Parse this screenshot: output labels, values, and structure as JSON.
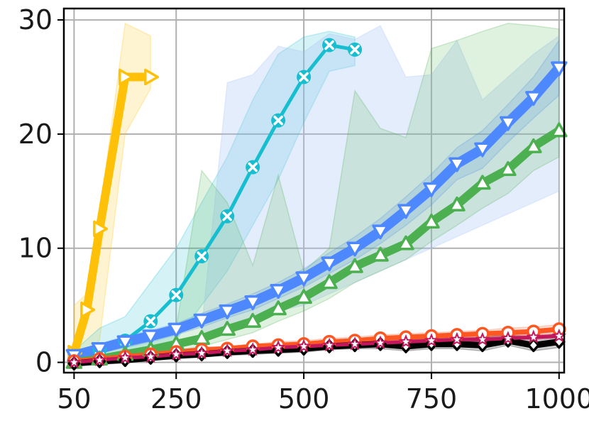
{
  "chart_data": {
    "type": "line",
    "title": "",
    "xlabel": "",
    "ylabel": "",
    "xlim": [
      30,
      1010
    ],
    "ylim": [
      -0.9,
      31
    ],
    "grid": true,
    "legend": "none",
    "x_ticks": [
      {
        "value": 50,
        "label": "50"
      },
      {
        "value": 250,
        "label": "250"
      },
      {
        "value": 500,
        "label": "500"
      },
      {
        "value": 750,
        "label": "750"
      },
      {
        "value": 1000,
        "label": "1000"
      }
    ],
    "y_ticks": [
      {
        "value": 0,
        "label": "0"
      },
      {
        "value": 10,
        "label": "10"
      },
      {
        "value": 20,
        "label": "20"
      },
      {
        "value": 30,
        "label": "30"
      }
    ],
    "series": [
      {
        "color": "#ffc107",
        "marker": "triangle-right",
        "line_width": 12,
        "x": [
          50,
          75,
          100,
          150,
          200
        ],
        "y": [
          0.8,
          4.6,
          11.7,
          25.0,
          25.0
        ],
        "band_upper": [
          5,
          6,
          13,
          29.7,
          28.6
        ],
        "band_lower": [
          0.2,
          0.5,
          2,
          20,
          24
        ],
        "band_x": [
          50,
          75,
          100,
          150,
          200
        ]
      },
      {
        "color": "#17becf",
        "marker": "x-circle",
        "line_width": 5,
        "x": [
          50,
          100,
          150,
          200,
          250,
          300,
          350,
          400,
          450,
          500,
          550,
          600
        ],
        "y": [
          0.1,
          1.1,
          1.9,
          3.6,
          5.9,
          9.3,
          12.8,
          17.1,
          21.2,
          25.0,
          27.8,
          27.4
        ],
        "band_upper": [
          1,
          3,
          4,
          7,
          10,
          14,
          18,
          23,
          27,
          28.5,
          29,
          28.5
        ],
        "band_lower": [
          0,
          0.3,
          0.5,
          1,
          2,
          5,
          8,
          12,
          16,
          21,
          25.5,
          26
        ],
        "band_x": [
          50,
          100,
          150,
          200,
          250,
          300,
          350,
          400,
          450,
          500,
          550,
          600
        ]
      },
      {
        "color": "#a4c2f4",
        "marker": "none",
        "line_width": 0,
        "band_only": true,
        "band_x": [
          300,
          350,
          400,
          450,
          500,
          550,
          600,
          650,
          700,
          750,
          800,
          850,
          900,
          950,
          1000
        ],
        "band_upper": [
          3,
          24.5,
          25.2,
          27.7,
          27.2,
          28.8,
          28.3,
          29.5,
          25,
          25.2,
          28.2,
          23,
          25,
          27,
          28.6
        ],
        "band_lower": [
          2,
          3,
          4,
          4.5,
          5,
          6,
          7,
          8,
          9,
          10,
          11,
          12,
          13,
          14,
          15
        ]
      },
      {
        "color": "#4d88ff",
        "marker": "triangle-down",
        "line_width": 14,
        "x": [
          50,
          100,
          150,
          200,
          250,
          300,
          350,
          400,
          450,
          500,
          550,
          600,
          650,
          700,
          750,
          800,
          850,
          900,
          950,
          1000
        ],
        "y": [
          0.6,
          1.2,
          1.8,
          2.3,
          2.9,
          3.7,
          4.5,
          5.3,
          6.3,
          7.4,
          8.7,
          10.0,
          11.5,
          13.3,
          15.2,
          17.4,
          18.7,
          21.0,
          23.2,
          25.8
        ],
        "band_upper": [
          1,
          1.6,
          2.3,
          2.8,
          3.4,
          4.3,
          5.1,
          6,
          7,
          8.2,
          9.6,
          11,
          12.6,
          14.5,
          16.5,
          18.8,
          20.3,
          22.6,
          25,
          28.2
        ],
        "band_lower": [
          0.3,
          0.8,
          1.3,
          1.8,
          2.4,
          3.1,
          3.9,
          4.6,
          5.6,
          6.6,
          7.8,
          9,
          10.4,
          12,
          13.8,
          16,
          17,
          19.3,
          21.4,
          23.4
        ],
        "band_x": [
          50,
          100,
          150,
          200,
          250,
          300,
          350,
          400,
          450,
          500,
          550,
          600,
          650,
          700,
          750,
          800,
          850,
          900,
          950,
          1000
        ]
      },
      {
        "color": "#4caf50",
        "marker": "triangle-up",
        "line_width": 12,
        "x": [
          50,
          100,
          150,
          200,
          250,
          300,
          350,
          400,
          450,
          500,
          550,
          600,
          650,
          700,
          750,
          800,
          850,
          900,
          950,
          1000
        ],
        "y": [
          0.0,
          0.3,
          0.7,
          1.1,
          1.6,
          2.1,
          2.9,
          3.6,
          4.7,
          5.7,
          7.0,
          8.4,
          9.4,
          10.4,
          12.3,
          13.8,
          15.7,
          16.9,
          18.9,
          20.3
        ],
        "band_upper": [
          0.5,
          1,
          1.5,
          2,
          3,
          16.8,
          14,
          8.5,
          16.4,
          8,
          10,
          23.8,
          20.5,
          19.7,
          27.5,
          28.2,
          29,
          29.7,
          29.5,
          29.2
        ],
        "band_lower": [
          -0.3,
          0,
          0.2,
          0.6,
          1,
          1.4,
          2,
          2.6,
          3.6,
          4.5,
          5.6,
          7,
          8,
          9,
          10.6,
          12,
          13.5,
          14.8,
          16.8,
          18
        ],
        "band_x": [
          50,
          100,
          150,
          200,
          250,
          300,
          350,
          400,
          450,
          500,
          550,
          600,
          650,
          700,
          750,
          800,
          850,
          900,
          950,
          1000
        ]
      },
      {
        "color": "#ff5722",
        "marker": "circle",
        "line_width": 7,
        "x": [
          50,
          100,
          150,
          200,
          250,
          300,
          350,
          400,
          450,
          500,
          550,
          600,
          650,
          700,
          750,
          800,
          850,
          900,
          950,
          1000
        ],
        "y": [
          0.1,
          0.3,
          0.5,
          0.7,
          0.9,
          1.1,
          1.2,
          1.4,
          1.5,
          1.6,
          1.8,
          1.9,
          2.1,
          2.2,
          2.3,
          2.4,
          2.5,
          2.6,
          2.7,
          2.9
        ],
        "band_upper": [
          0.3,
          0.5,
          0.7,
          0.9,
          1.1,
          1.3,
          1.4,
          1.6,
          1.8,
          1.9,
          2.1,
          2.2,
          2.4,
          2.5,
          2.6,
          2.7,
          2.8,
          3,
          3.1,
          3.3
        ],
        "band_lower": [
          0,
          0.1,
          0.3,
          0.5,
          0.7,
          0.9,
          1,
          1.2,
          1.3,
          1.4,
          1.6,
          1.7,
          1.8,
          1.9,
          2,
          2.1,
          2.2,
          2.3,
          2.4,
          2.5
        ],
        "band_x": [
          50,
          100,
          150,
          200,
          250,
          300,
          350,
          400,
          450,
          500,
          550,
          600,
          650,
          700,
          750,
          800,
          850,
          900,
          950,
          1000
        ]
      },
      {
        "color": "#000000",
        "marker": "diamond",
        "line_width": 9,
        "x": [
          50,
          100,
          150,
          200,
          250,
          300,
          350,
          400,
          450,
          500,
          550,
          600,
          650,
          700,
          750,
          800,
          850,
          900,
          950,
          1000
        ],
        "y": [
          -0.1,
          0.1,
          0.2,
          0.4,
          0.6,
          0.7,
          0.9,
          1.0,
          1.1,
          1.2,
          1.4,
          1.5,
          1.6,
          1.4,
          1.6,
          1.6,
          1.5,
          1.9,
          1.5,
          1.8
        ],
        "band_upper": [
          0.2,
          0.3,
          0.5,
          0.7,
          0.9,
          1,
          1.2,
          1.3,
          1.4,
          1.6,
          1.8,
          1.9,
          2.1,
          2,
          2.1,
          2.1,
          2.2,
          2.4,
          2.2,
          2.5
        ],
        "band_lower": [
          -0.3,
          -0.2,
          0,
          0.2,
          0.3,
          0.5,
          0.6,
          0.7,
          0.8,
          0.9,
          1.1,
          1.2,
          1.2,
          1,
          1.2,
          1.2,
          1,
          1.5,
          1,
          1.3
        ],
        "band_x": [
          50,
          100,
          150,
          200,
          250,
          300,
          350,
          400,
          450,
          500,
          550,
          600,
          650,
          700,
          750,
          800,
          850,
          900,
          950,
          1000
        ]
      },
      {
        "color": "#c2185b",
        "marker": "star",
        "line_width": 5,
        "x": [
          50,
          100,
          150,
          200,
          250,
          300,
          350,
          400,
          450,
          500,
          550,
          600,
          650,
          700,
          750,
          800,
          850,
          900,
          950,
          1000
        ],
        "y": [
          0.0,
          0.2,
          0.4,
          0.5,
          0.7,
          0.8,
          1.0,
          1.1,
          1.3,
          1.4,
          1.5,
          1.6,
          1.7,
          1.8,
          1.9,
          2.0,
          2.0,
          2.1,
          2.2,
          2.3
        ],
        "band_upper": [
          0.2,
          0.4,
          0.6,
          0.7,
          0.9,
          1,
          1.2,
          1.3,
          1.5,
          1.6,
          1.7,
          1.8,
          1.9,
          2,
          2.1,
          2.2,
          2.2,
          2.3,
          2.4,
          2.5
        ],
        "band_lower": [
          -0.1,
          0,
          0.2,
          0.3,
          0.5,
          0.6,
          0.8,
          0.9,
          1.1,
          1.2,
          1.3,
          1.4,
          1.5,
          1.6,
          1.7,
          1.8,
          1.8,
          1.9,
          2,
          2.1
        ],
        "band_x": [
          50,
          100,
          150,
          200,
          250,
          300,
          350,
          400,
          450,
          500,
          550,
          600,
          650,
          700,
          750,
          800,
          850,
          900,
          950,
          1000
        ]
      }
    ]
  }
}
